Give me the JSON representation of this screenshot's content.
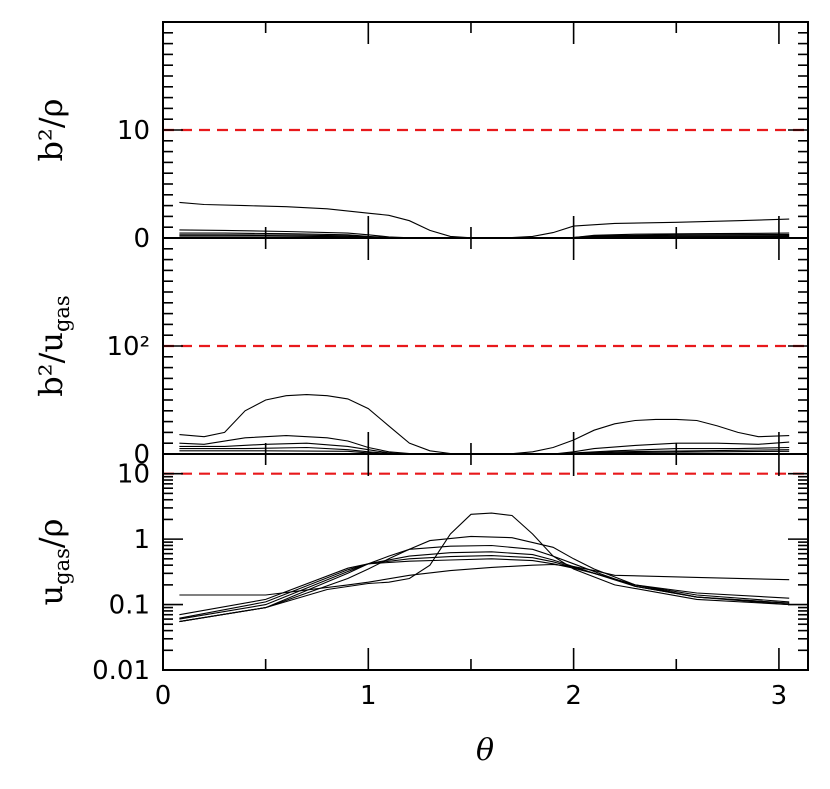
{
  "chart_data": {
    "type": "line",
    "shared_x": {
      "label": "θ",
      "range": [
        0,
        3.1416
      ],
      "ticks": [
        0,
        1,
        2,
        3
      ],
      "tick_labels": [
        "0",
        "1",
        "2",
        "3"
      ]
    },
    "colors": {
      "curve": "#000000",
      "reference": "#e8191c"
    },
    "panels": [
      {
        "id": "b2_rho",
        "ylabel": "b²/ρ",
        "scale": "linear",
        "ylim": [
          0,
          20
        ],
        "yticks": [
          0,
          10
        ],
        "ytick_labels": [
          "0",
          "10"
        ],
        "reference_line": 10,
        "series": [
          {
            "name": "curve-1",
            "x": [
              0.08,
              0.2,
              0.4,
              0.6,
              0.8,
              1.0,
              1.1,
              1.2,
              1.3,
              1.4,
              1.5,
              1.6,
              1.7,
              1.8,
              1.9,
              2.0,
              2.2,
              2.5,
              2.8,
              3.05
            ],
            "y": [
              3.3,
              3.1,
              3.0,
              2.9,
              2.7,
              2.3,
              2.1,
              1.6,
              0.7,
              0.15,
              0.02,
              0.02,
              0.05,
              0.15,
              0.5,
              1.1,
              1.35,
              1.45,
              1.6,
              1.75
            ]
          },
          {
            "name": "curve-2",
            "x": [
              0.08,
              0.3,
              0.6,
              0.9,
              1.0,
              1.1,
              1.2,
              1.3,
              1.9,
              2.0,
              2.1,
              2.3,
              2.6,
              3.05
            ],
            "y": [
              0.75,
              0.7,
              0.6,
              0.45,
              0.3,
              0.1,
              0.02,
              0.0,
              0.0,
              0.05,
              0.25,
              0.35,
              0.4,
              0.45
            ]
          },
          {
            "name": "curve-3",
            "x": [
              0.08,
              0.3,
              0.6,
              0.9,
              1.0,
              1.1,
              1.2,
              1.9,
              2.0,
              2.1,
              2.5,
              3.05
            ],
            "y": [
              0.45,
              0.45,
              0.4,
              0.3,
              0.15,
              0.05,
              0.0,
              0.0,
              0.05,
              0.2,
              0.3,
              0.32
            ]
          },
          {
            "name": "curve-4",
            "x": [
              0.08,
              0.3,
              0.6,
              0.9,
              1.0,
              1.1,
              1.9,
              2.0,
              2.1,
              2.5,
              3.05
            ],
            "y": [
              0.3,
              0.3,
              0.28,
              0.2,
              0.1,
              0.02,
              0.0,
              0.05,
              0.15,
              0.2,
              0.22
            ]
          },
          {
            "name": "curve-5",
            "x": [
              0.08,
              0.5,
              0.9,
              1.0,
              1.1,
              1.9,
              2.0,
              2.1,
              2.5,
              3.05
            ],
            "y": [
              0.18,
              0.18,
              0.12,
              0.05,
              0.0,
              0.0,
              0.03,
              0.1,
              0.12,
              0.14
            ]
          }
        ]
      },
      {
        "id": "b2_ugas",
        "ylabel": "b²/u_gas",
        "ylabel_main": "b²/u",
        "ylabel_sub": "gas",
        "scale": "linear",
        "ylim": [
          0,
          200
        ],
        "yticks": [
          0,
          100
        ],
        "ytick_labels": [
          "0",
          "10²"
        ],
        "reference_line": 100,
        "series": [
          {
            "name": "curve-1",
            "x": [
              0.08,
              0.2,
              0.3,
              0.4,
              0.5,
              0.6,
              0.7,
              0.8,
              0.9,
              1.0,
              1.1,
              1.2,
              1.3,
              1.4,
              1.5,
              1.6,
              1.7,
              1.8,
              1.9,
              2.0,
              2.1,
              2.2,
              2.3,
              2.4,
              2.5,
              2.6,
              2.7,
              2.8,
              2.9,
              3.05
            ],
            "y": [
              18,
              16,
              20,
              40,
              50,
              54,
              55,
              54,
              51,
              42,
              26,
              10,
              3,
              0.5,
              0,
              0,
              0.3,
              2,
              6,
              13,
              22,
              28,
              31,
              32,
              32,
              31,
              26,
              20,
              16,
              17
            ]
          },
          {
            "name": "curve-2",
            "x": [
              0.08,
              0.2,
              0.4,
              0.6,
              0.8,
              0.9,
              1.0,
              1.1,
              1.2,
              1.3,
              1.9,
              2.0,
              2.1,
              2.3,
              2.5,
              2.7,
              2.9,
              3.05
            ],
            "y": [
              10,
              9,
              15,
              17,
              15,
              12,
              6,
              2,
              0.5,
              0,
              0,
              2,
              5,
              8,
              10,
              10,
              9,
              11
            ]
          },
          {
            "name": "curve-3",
            "x": [
              0.08,
              0.3,
              0.5,
              0.7,
              0.9,
              1.0,
              1.1,
              1.2,
              1.9,
              2.0,
              2.2,
              2.5,
              2.8,
              3.05
            ],
            "y": [
              7,
              7,
              9,
              10,
              7,
              4,
              1,
              0,
              0,
              1,
              3,
              5,
              5,
              6
            ]
          },
          {
            "name": "curve-4",
            "x": [
              0.08,
              0.4,
              0.7,
              0.9,
              1.0,
              1.1,
              1.9,
              2.0,
              2.2,
              2.6,
              3.05
            ],
            "y": [
              5,
              5,
              6,
              4,
              2,
              0.5,
              0,
              0.5,
              2,
              3,
              4
            ]
          },
          {
            "name": "curve-5",
            "x": [
              0.08,
              0.5,
              0.9,
              1.0,
              1.1,
              1.9,
              2.0,
              2.3,
              2.7,
              3.05
            ],
            "y": [
              3,
              3,
              2.5,
              1,
              0,
              0,
              0.5,
              1.5,
              2,
              2.5
            ]
          }
        ]
      },
      {
        "id": "ugas_rho",
        "ylabel": "u_gas/ρ",
        "ylabel_main_1": "u",
        "ylabel_sub": "gas",
        "ylabel_main_2": "/ρ",
        "scale": "log",
        "ylim": [
          0.01,
          20
        ],
        "yticks": [
          0.01,
          0.1,
          1,
          10
        ],
        "ytick_labels": [
          "0.01",
          "0.1",
          "1",
          "10"
        ],
        "reference_line": 10,
        "series": [
          {
            "name": "curve-1",
            "x": [
              0.08,
              0.5,
              0.8,
              1.0,
              1.1,
              1.2,
              1.3,
              1.4,
              1.5,
              1.6,
              1.7,
              1.8,
              1.9,
              2.0,
              2.2,
              2.6,
              3.05
            ],
            "y": [
              0.055,
              0.09,
              0.17,
              0.21,
              0.22,
              0.25,
              0.4,
              1.2,
              2.4,
              2.5,
              2.3,
              1.2,
              0.55,
              0.35,
              0.2,
              0.12,
              0.1
            ]
          },
          {
            "name": "curve-2",
            "x": [
              0.08,
              0.5,
              0.9,
              1.0,
              1.1,
              1.2,
              1.3,
              1.5,
              1.7,
              1.9,
              2.0,
              2.1,
              2.3,
              2.6,
              3.05
            ],
            "y": [
              0.055,
              0.09,
              0.25,
              0.35,
              0.5,
              0.7,
              0.95,
              1.1,
              1.05,
              0.75,
              0.5,
              0.35,
              0.2,
              0.13,
              0.1
            ]
          },
          {
            "name": "curve-3",
            "x": [
              0.08,
              0.5,
              0.9,
              1.0,
              1.1,
              1.2,
              1.4,
              1.6,
              1.8,
              1.9,
              2.0,
              2.1,
              2.3,
              2.6,
              3.05
            ],
            "y": [
              0.055,
              0.09,
              0.3,
              0.42,
              0.55,
              0.7,
              0.78,
              0.8,
              0.7,
              0.55,
              0.42,
              0.32,
              0.19,
              0.13,
              0.105
            ]
          },
          {
            "name": "curve-4",
            "x": [
              0.08,
              0.5,
              0.9,
              1.0,
              1.2,
              1.4,
              1.6,
              1.8,
              1.9,
              2.0,
              2.1,
              2.3,
              2.6,
              3.05
            ],
            "y": [
              0.06,
              0.1,
              0.32,
              0.42,
              0.55,
              0.62,
              0.64,
              0.58,
              0.48,
              0.38,
              0.3,
              0.19,
              0.13,
              0.105
            ]
          },
          {
            "name": "curve-5",
            "x": [
              0.08,
              0.5,
              0.9,
              1.0,
              1.2,
              1.4,
              1.6,
              1.8,
              1.9,
              2.0,
              2.1,
              2.3,
              2.6,
              3.05
            ],
            "y": [
              0.062,
              0.11,
              0.34,
              0.42,
              0.5,
              0.54,
              0.56,
              0.52,
              0.45,
              0.37,
              0.3,
              0.2,
              0.14,
              0.11
            ]
          },
          {
            "name": "curve-6",
            "x": [
              0.08,
              0.5,
              0.9,
              1.0,
              1.2,
              1.4,
              1.6,
              1.8,
              1.9,
              2.0,
              2.1,
              2.3,
              2.6,
              3.05
            ],
            "y": [
              0.07,
              0.12,
              0.36,
              0.42,
              0.46,
              0.48,
              0.5,
              0.47,
              0.42,
              0.36,
              0.3,
              0.2,
              0.15,
              0.125
            ]
          },
          {
            "name": "curve-7",
            "x": [
              0.08,
              0.5,
              0.9,
              1.0,
              1.2,
              1.4,
              1.6,
              1.8,
              1.9,
              2.0,
              2.1,
              2.2,
              2.6,
              3.05
            ],
            "y": [
              0.14,
              0.14,
              0.2,
              0.22,
              0.28,
              0.33,
              0.37,
              0.4,
              0.41,
              0.38,
              0.33,
              0.28,
              0.26,
              0.24
            ]
          }
        ]
      }
    ]
  }
}
